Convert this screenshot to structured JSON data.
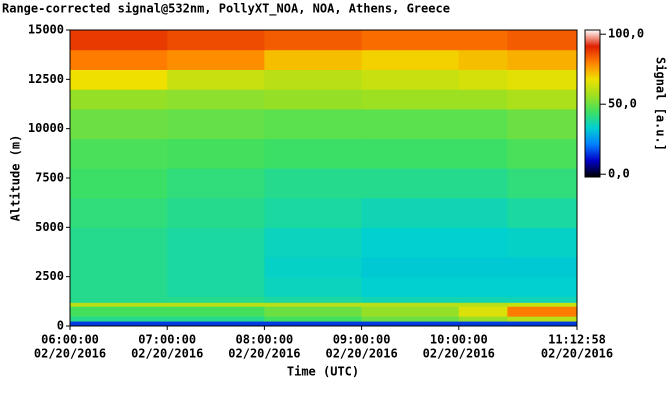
{
  "chart_data": {
    "type": "heatmap",
    "title": "Range-corrected signal@532nm, PollyXT_NOA, NOA, Athens, Greece",
    "xlabel": "Time (UTC)",
    "ylabel": "Altitude (m)",
    "xlim": [
      6,
      11.2161
    ],
    "xticks": [
      {
        "value": 6,
        "label": [
          "06:00:00",
          "02/20/2016"
        ]
      },
      {
        "value": 7,
        "label": [
          "07:00:00",
          "02/20/2016"
        ]
      },
      {
        "value": 8,
        "label": [
          "08:00:00",
          "02/20/2016"
        ]
      },
      {
        "value": 9,
        "label": [
          "09:00:00",
          "02/20/2016"
        ]
      },
      {
        "value": 10,
        "label": [
          "10:00:00",
          "02/20/2016"
        ]
      },
      {
        "value": 11.2161,
        "label": [
          "11:12:58",
          "02/20/2016"
        ]
      }
    ],
    "ylim": [
      0,
      15000
    ],
    "yticks": [
      0,
      2500,
      5000,
      7500,
      10000,
      12500,
      15000
    ],
    "x_edges": [
      6,
      7,
      8,
      9,
      10,
      10.5,
      11.2161
    ],
    "y_edges": [
      0,
      250,
      500,
      1000,
      1200,
      1500,
      2500,
      3500,
      5000,
      6500,
      8000,
      9500,
      11000,
      12000,
      13000,
      14000,
      15000
    ],
    "z": [
      [
        15,
        15,
        15,
        15,
        15,
        15
      ],
      [
        40,
        40,
        45,
        50,
        55,
        60
      ],
      [
        45,
        45,
        50,
        55,
        65,
        80
      ],
      [
        60,
        60,
        60,
        60,
        60,
        62
      ],
      [
        40,
        40,
        38,
        36,
        36,
        36
      ],
      [
        40,
        38,
        35,
        33,
        33,
        33
      ],
      [
        40,
        38,
        34,
        32,
        32,
        32
      ],
      [
        40,
        38,
        35,
        33,
        33,
        34
      ],
      [
        42,
        40,
        38,
        36,
        36,
        38
      ],
      [
        44,
        42,
        40,
        40,
        40,
        42
      ],
      [
        46,
        45,
        44,
        44,
        44,
        46
      ],
      [
        50,
        49,
        48,
        48,
        48,
        50
      ],
      [
        55,
        54,
        55,
        56,
        56,
        58
      ],
      [
        68,
        62,
        60,
        62,
        64,
        66
      ],
      [
        80,
        78,
        72,
        70,
        72,
        74
      ],
      [
        88,
        86,
        84,
        82,
        82,
        84
      ]
    ],
    "colormap": [
      "#000000",
      "#0000c8",
      "#0080ff",
      "#00d0d0",
      "#40e060",
      "#a0e020",
      "#f0e000",
      "#ff8000",
      "#e02000",
      "#ffffff"
    ],
    "colorbar": {
      "label": "Signal [a.u.]",
      "lim": [
        -2,
        103
      ],
      "ticks": [
        {
          "value": 0,
          "label": "0,0"
        },
        {
          "value": 50,
          "label": "50,0"
        },
        {
          "value": 100,
          "label": "100,0"
        }
      ]
    }
  }
}
